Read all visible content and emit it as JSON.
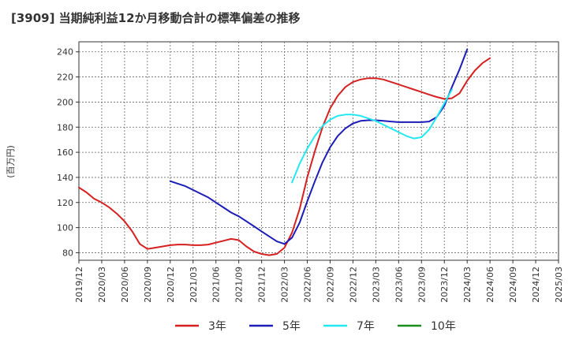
{
  "chart_data": {
    "type": "line",
    "title": "[3909]  当期純利益12か月移動合計の標準偏差の推移",
    "ylabel": "(百万円)",
    "xlabel": "",
    "ylim": [
      74,
      248
    ],
    "yticks": [
      80,
      100,
      120,
      140,
      160,
      180,
      200,
      220,
      240
    ],
    "x_start": "2019/12",
    "x_end": "2025/03",
    "xticks": [
      "2019/12",
      "2020/03",
      "2020/06",
      "2020/09",
      "2020/12",
      "2021/03",
      "2021/06",
      "2021/09",
      "2021/12",
      "2022/03",
      "2022/06",
      "2022/09",
      "2022/12",
      "2023/03",
      "2023/06",
      "2023/09",
      "2023/12",
      "2024/03",
      "2024/06",
      "2024/09",
      "2024/12",
      "2025/03"
    ],
    "grid": true,
    "legend_position": "bottom",
    "series": [
      {
        "name": "3年",
        "color": "#d62020",
        "points": [
          [
            0,
            132
          ],
          [
            1,
            128
          ],
          [
            2,
            123
          ],
          [
            3,
            120
          ],
          [
            4,
            116
          ],
          [
            5,
            111
          ],
          [
            6,
            105
          ],
          [
            7,
            97
          ],
          [
            8,
            87
          ],
          [
            9,
            83
          ],
          [
            10,
            84
          ],
          [
            11,
            85
          ],
          [
            12,
            86
          ],
          [
            13,
            86.5
          ],
          [
            14,
            86.5
          ],
          [
            15,
            86
          ],
          [
            16,
            86
          ],
          [
            17,
            86.5
          ],
          [
            18,
            88
          ],
          [
            19,
            89.5
          ],
          [
            20,
            91
          ],
          [
            21,
            90
          ],
          [
            22,
            85
          ],
          [
            23,
            81
          ],
          [
            24,
            79
          ],
          [
            25,
            78
          ],
          [
            26,
            79
          ],
          [
            27,
            84
          ],
          [
            28,
            96
          ],
          [
            29,
            115
          ],
          [
            30,
            140
          ],
          [
            31,
            161
          ],
          [
            32,
            180
          ],
          [
            33,
            195
          ],
          [
            34,
            205
          ],
          [
            35,
            212
          ],
          [
            36,
            216
          ],
          [
            37,
            218
          ],
          [
            38,
            219
          ],
          [
            39,
            219
          ],
          [
            40,
            218
          ],
          [
            41,
            216
          ],
          [
            42,
            214
          ],
          [
            43,
            212
          ],
          [
            44,
            210
          ],
          [
            45,
            208
          ],
          [
            46,
            206
          ],
          [
            47,
            204
          ],
          [
            48,
            202.5
          ],
          [
            49,
            203
          ],
          [
            50,
            207
          ],
          [
            51,
            217
          ],
          [
            52,
            225
          ],
          [
            53,
            231
          ],
          [
            54,
            235
          ]
        ]
      },
      {
        "name": "5年",
        "color": "#1c1cb8",
        "points": [
          [
            12,
            137
          ],
          [
            13,
            135
          ],
          [
            14,
            133
          ],
          [
            15,
            130
          ],
          [
            16,
            127
          ],
          [
            17,
            124
          ],
          [
            18,
            120
          ],
          [
            19,
            116
          ],
          [
            20,
            112
          ],
          [
            21,
            109
          ],
          [
            22,
            105
          ],
          [
            23,
            101
          ],
          [
            24,
            97
          ],
          [
            25,
            93
          ],
          [
            26,
            89
          ],
          [
            27,
            87
          ],
          [
            28,
            92
          ],
          [
            29,
            104
          ],
          [
            30,
            121
          ],
          [
            31,
            137
          ],
          [
            32,
            152
          ],
          [
            33,
            164
          ],
          [
            34,
            173
          ],
          [
            35,
            179
          ],
          [
            36,
            183
          ],
          [
            37,
            185
          ],
          [
            38,
            185.5
          ],
          [
            39,
            185.5
          ],
          [
            40,
            185
          ],
          [
            41,
            184.5
          ],
          [
            42,
            184
          ],
          [
            43,
            184
          ],
          [
            44,
            184
          ],
          [
            45,
            184
          ],
          [
            46,
            184.5
          ],
          [
            47,
            188
          ],
          [
            48,
            197
          ],
          [
            49,
            212
          ],
          [
            50,
            226
          ],
          [
            51,
            242
          ]
        ]
      },
      {
        "name": "7年",
        "color": "#22e8f0",
        "points": [
          [
            28,
            136
          ],
          [
            29,
            151
          ],
          [
            30,
            163
          ],
          [
            31,
            173
          ],
          [
            32,
            181
          ],
          [
            33,
            186
          ],
          [
            34,
            189
          ],
          [
            35,
            190
          ],
          [
            36,
            190
          ],
          [
            37,
            189
          ],
          [
            38,
            187
          ],
          [
            39,
            185
          ],
          [
            40,
            182
          ],
          [
            41,
            179
          ],
          [
            42,
            176
          ],
          [
            43,
            173
          ],
          [
            44,
            171
          ],
          [
            45,
            172
          ],
          [
            46,
            178
          ],
          [
            47,
            188
          ],
          [
            48,
            199
          ],
          [
            49,
            210
          ]
        ]
      },
      {
        "name": "10年",
        "color": "#1a8c1a",
        "points": []
      }
    ]
  }
}
